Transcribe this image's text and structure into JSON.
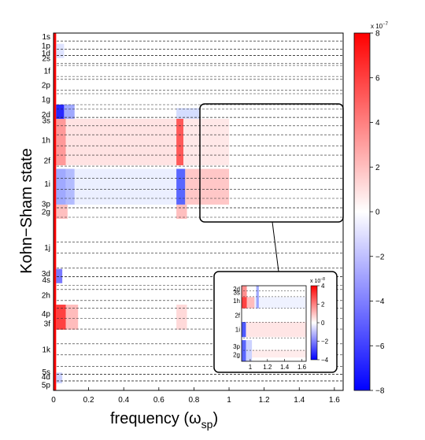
{
  "chart_data": {
    "type": "heatmap",
    "xlabel_main": "frequency (ω",
    "xlabel_sub": "sp",
    "xlabel_close": ")",
    "ylabel": "Kohn−Sham state",
    "xlim": [
      0,
      1.65
    ],
    "x_ticks": [
      "0",
      "0.2",
      "0.4",
      "0.6",
      "0.8",
      "1",
      "1.2",
      "1.4",
      "1.6"
    ],
    "x_tick_values": [
      0,
      0.2,
      0.4,
      0.6,
      0.8,
      1.0,
      1.2,
      1.4,
      1.6
    ],
    "states": [
      "1s",
      "1p",
      "1d",
      "2s",
      "1f",
      "2p",
      "1g",
      "2d",
      "3s",
      "1h",
      "2f",
      "1i",
      "3p",
      "2g",
      "1j",
      "3d",
      "4s",
      "2h",
      "4p",
      "3f",
      "1k",
      "5s",
      "4d",
      "5p"
    ],
    "state_fractions": [
      0.01,
      0.035,
      0.056,
      0.07,
      0.106,
      0.145,
      0.185,
      0.228,
      0.244,
      0.3,
      0.357,
      0.422,
      0.478,
      0.5,
      0.6,
      0.673,
      0.69,
      0.733,
      0.785,
      0.813,
      0.885,
      0.948,
      0.962,
      0.985
    ],
    "colorbar": {
      "label": "x 10",
      "exponent": "−7",
      "ticks": [
        "8",
        "6",
        "4",
        "2",
        "0",
        "−2",
        "−4",
        "−6",
        "−8"
      ],
      "tick_values": [
        8,
        6,
        4,
        2,
        0,
        -2,
        -4,
        -6,
        -8
      ],
      "range": [
        -8,
        8
      ],
      "colormap": [
        "#0000ff",
        "#ffffff",
        "#ff0000"
      ]
    },
    "inset": {
      "states": [
        "2d",
        "3s",
        "1h",
        "2f",
        "1i",
        "3p",
        "2g"
      ],
      "state_fractions": [
        0.04,
        0.09,
        0.2,
        0.39,
        0.58,
        0.8,
        0.91
      ],
      "x_ticks": [
        "1",
        "1.2",
        "1.4",
        "1.6"
      ],
      "x_tick_values": [
        1.0,
        1.2,
        1.4,
        1.6
      ],
      "xlim": [
        0.9,
        1.65
      ],
      "colorbar_label": "x 10",
      "colorbar_exponent": "−8",
      "colorbar_ticks": [
        "4",
        "2",
        "0",
        "−2",
        "−4"
      ],
      "colorbar_tick_values": [
        4,
        2,
        0,
        -2,
        -4
      ],
      "colorbar_range": [
        -4,
        4
      ]
    }
  }
}
